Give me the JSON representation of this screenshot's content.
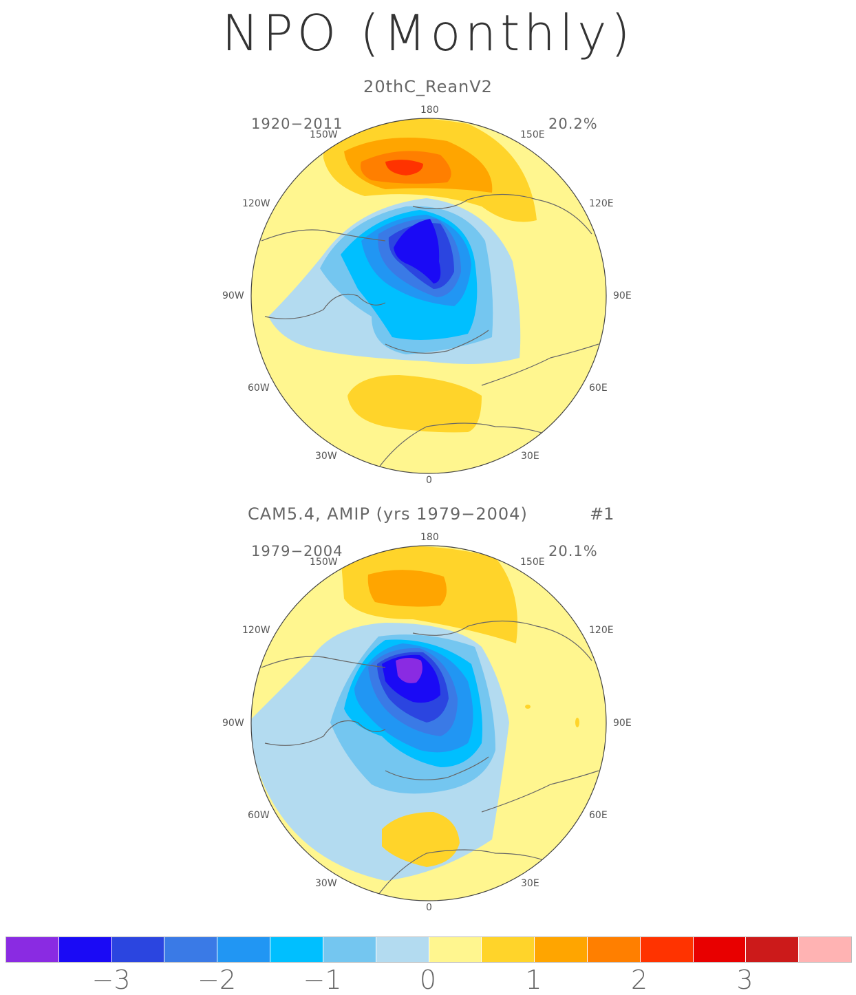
{
  "title": "NPO (Monthly)",
  "panels": [
    {
      "title": "20thC_ReanV2",
      "period": "1920−2011",
      "variance": "20.2%",
      "run_label": ""
    },
    {
      "title": "CAM5.4, AMIP (yrs 1979−2004)",
      "period": "1979−2004",
      "variance": "20.1%",
      "run_label": "#1"
    }
  ],
  "longitude_labels": {
    "top": "180",
    "upper_left": "150W",
    "upper_right": "150E",
    "left_upper": "120W",
    "right_upper": "120E",
    "left": "90W",
    "right": "90E",
    "left_lower": "60W",
    "right_lower": "60E",
    "lower_left": "30W",
    "lower_right": "30E",
    "bottom": "0"
  },
  "colorbar": {
    "colors": [
      "#8a2be2",
      "#1a0af5",
      "#2b45e0",
      "#3a7ae6",
      "#2196f3",
      "#00bfff",
      "#74c6f0",
      "#b3dbf0",
      "#fff68f",
      "#ffd42a",
      "#ffa500",
      "#ff7f00",
      "#ff3300",
      "#e80000",
      "#cc1a1a",
      "#ffb3b3"
    ],
    "tick_labels": [
      "−3",
      "−2",
      "−1",
      "0",
      "1",
      "2",
      "3"
    ]
  },
  "palette": {
    "land_line": "#666666",
    "background": "#fff68f"
  }
}
